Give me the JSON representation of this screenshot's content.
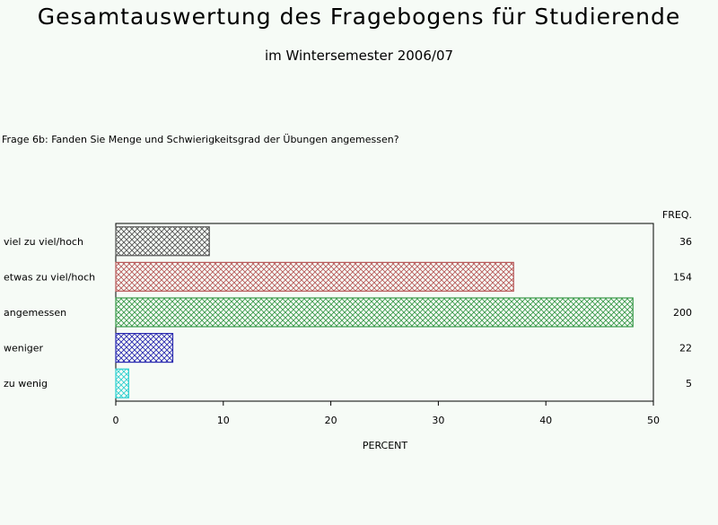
{
  "title": "Gesamtauswertung des Fragebogens für Studierende",
  "subtitle": "im Wintersemester 2006/07",
  "question": "Frage 6b: Fanden Sie Menge und Schwierigkeitsgrad der Übungen angemessen?",
  "chart_data": {
    "type": "bar",
    "orientation": "horizontal",
    "categories": [
      "viel zu viel/hoch",
      "etwas zu viel/hoch",
      "angemessen",
      "weniger",
      "zu wenig"
    ],
    "values": [
      8.7,
      37.0,
      48.1,
      5.3,
      1.2
    ],
    "freq": [
      "36",
      "154",
      "200",
      "22",
      "5"
    ],
    "freq_header": "FREQ.",
    "xlabel": "PERCENT",
    "xlim": [
      0,
      50
    ],
    "xticks": [
      "0",
      "10",
      "20",
      "30",
      "40",
      "50"
    ],
    "grid": false,
    "colors": [
      "#555555",
      "#b85a5a",
      "#3a9a4a",
      "#2a2ab0",
      "#30d0d0"
    ]
  }
}
